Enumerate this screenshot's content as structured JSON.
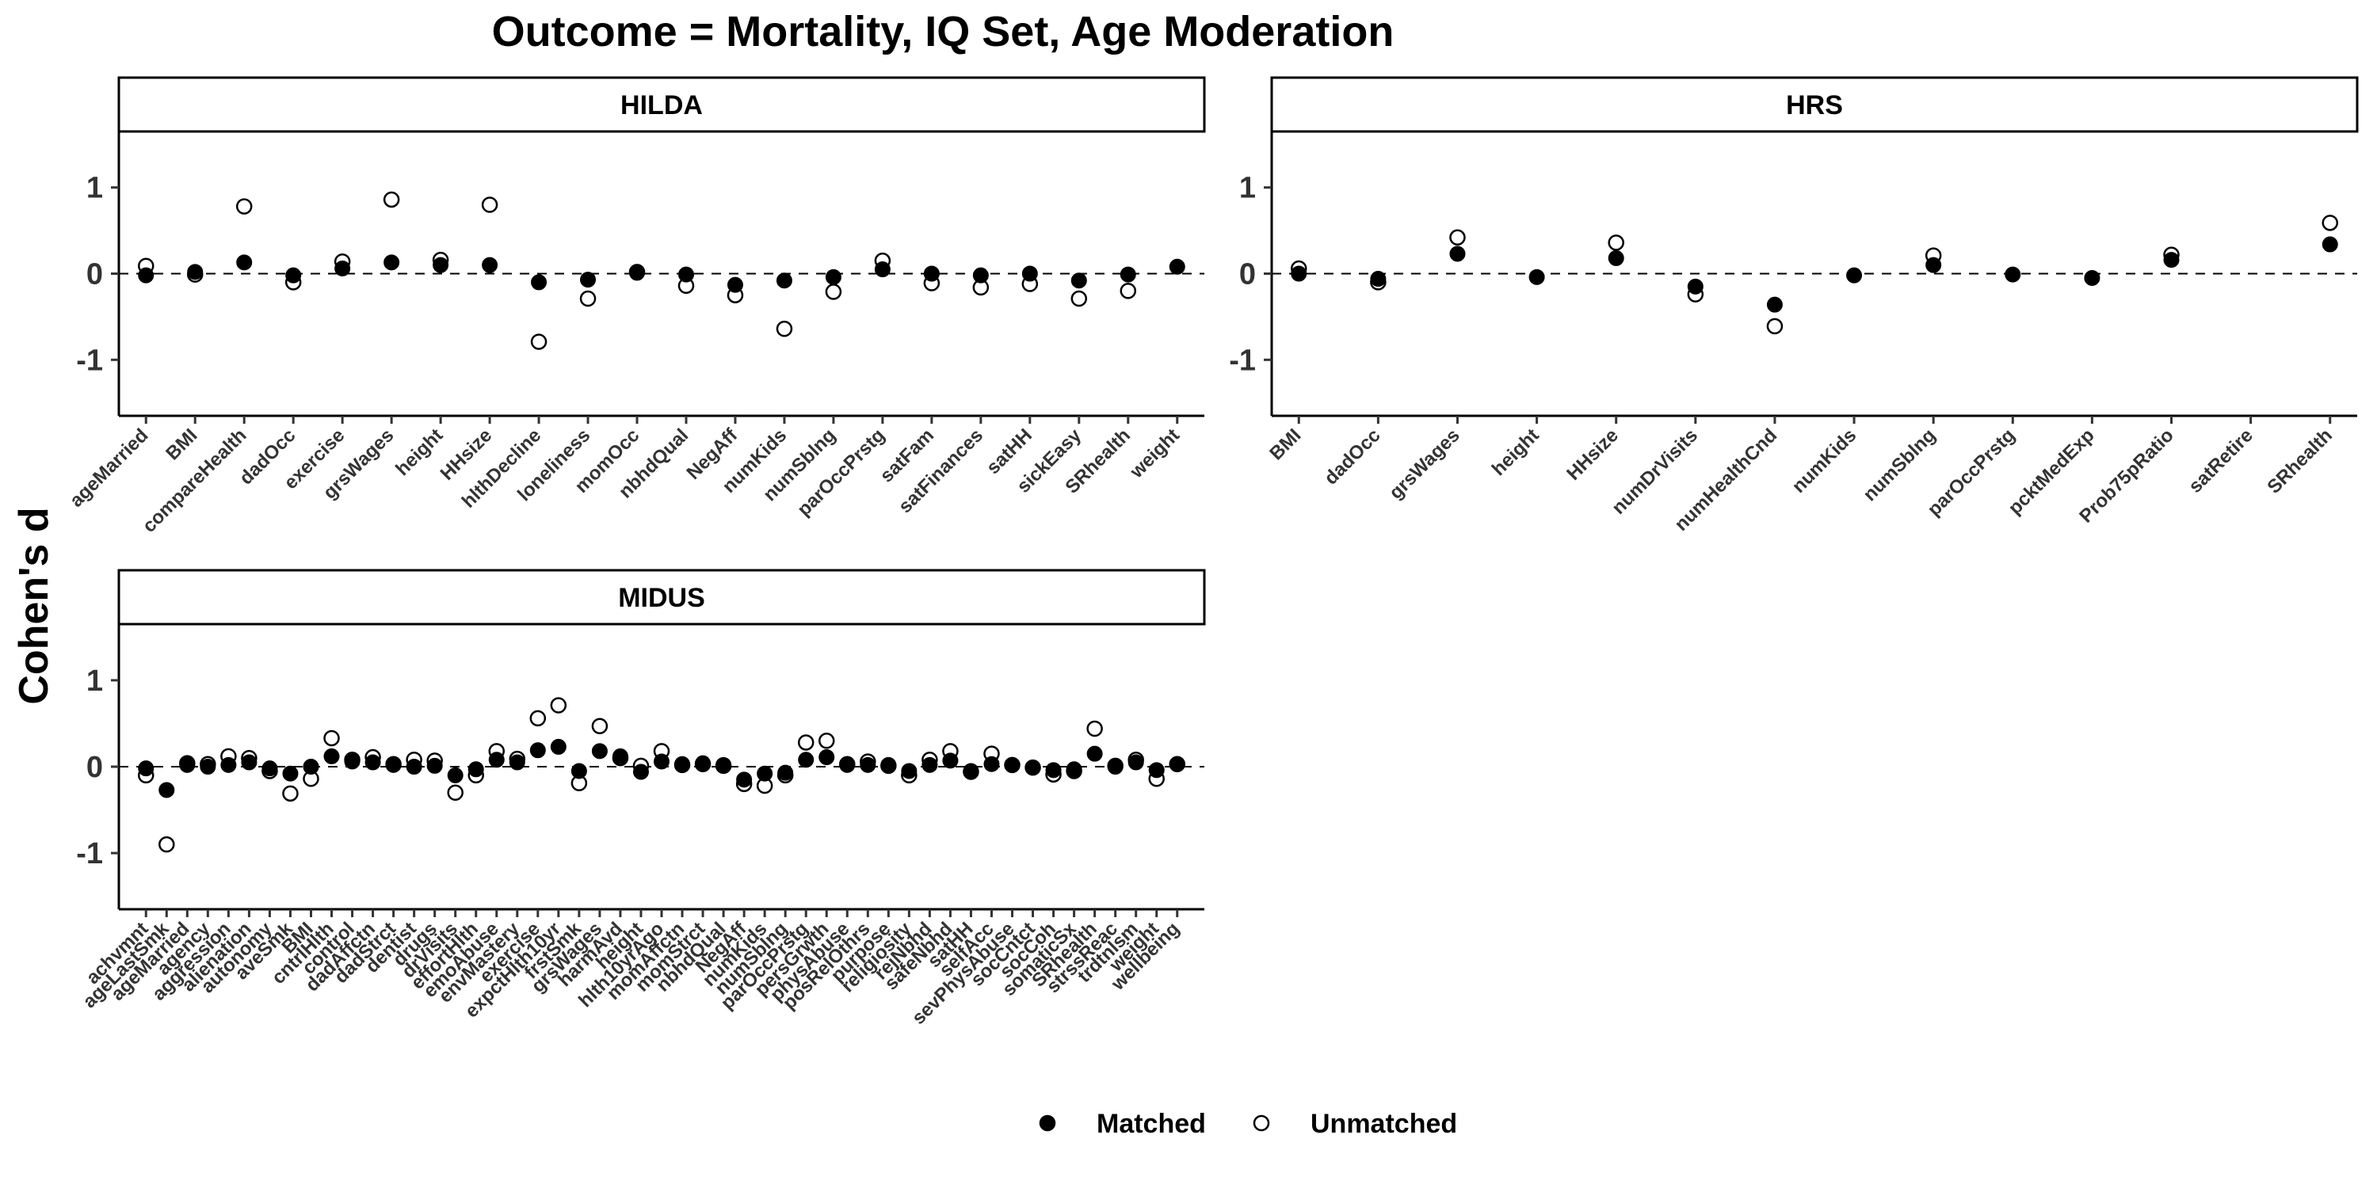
{
  "chart_data": {
    "type": "scatter",
    "title": "Outcome = Mortality, IQ Set, Age Moderation",
    "ylabel": "Cohen's d",
    "ylim": [
      -1.65,
      1.65
    ],
    "yticks": [
      -1,
      0,
      1
    ],
    "reference_line": {
      "y": 0,
      "style": "dashed"
    },
    "legend": {
      "placement": "bottom",
      "entries": [
        {
          "label": "Matched",
          "marker": "filled-circle"
        },
        {
          "label": "Unmatched",
          "marker": "open-circle"
        }
      ]
    },
    "colors": {
      "matched": "#000000",
      "unmatched": "#ffffff",
      "marker_edge": "#000000"
    },
    "panels": [
      {
        "name": "HILDA",
        "categories": [
          "ageMarried",
          "BMI",
          "compareHealth",
          "dadOcc",
          "exercise",
          "grsWages",
          "height",
          "HHsize",
          "hlthDecline",
          "loneliness",
          "momOcc",
          "nbhdQual",
          "NegAff",
          "numKids",
          "numSblng",
          "parOccPrstg",
          "satFam",
          "satFinances",
          "satHH",
          "sickEasy",
          "SRhealth",
          "weight"
        ],
        "series": [
          {
            "name": "Matched",
            "values": [
              -0.02,
              0.02,
              0.13,
              -0.02,
              0.06,
              0.13,
              0.1,
              0.1,
              -0.1,
              -0.07,
              0.01,
              -0.01,
              -0.13,
              -0.08,
              -0.04,
              0.05,
              0.0,
              -0.02,
              0.0,
              -0.08,
              -0.01,
              0.08
            ]
          },
          {
            "name": "Unmatched",
            "values": [
              0.09,
              -0.01,
              0.78,
              -0.1,
              0.14,
              0.86,
              0.16,
              0.8,
              -0.79,
              -0.29,
              0.02,
              -0.14,
              -0.25,
              -0.64,
              -0.21,
              0.15,
              -0.11,
              -0.16,
              -0.12,
              -0.29,
              -0.2,
              null
            ]
          }
        ]
      },
      {
        "name": "HRS",
        "categories": [
          "BMI",
          "dadOcc",
          "grsWages",
          "height",
          "HHsize",
          "numDrVisits",
          "numHealthCnd",
          "numKids",
          "numSblng",
          "parOccPrstg",
          "pcktMedExp",
          "Prob75pRatio",
          "satRetire",
          "SRhealth"
        ],
        "series": [
          {
            "name": "Matched",
            "values": [
              0.0,
              -0.06,
              0.23,
              -0.04,
              0.18,
              -0.15,
              -0.36,
              -0.02,
              0.1,
              -0.01,
              -0.05,
              0.16,
              null,
              0.34
            ]
          },
          {
            "name": "Unmatched",
            "values": [
              0.06,
              -0.1,
              0.42,
              null,
              0.36,
              -0.24,
              -0.61,
              null,
              0.21,
              null,
              null,
              0.22,
              null,
              0.59
            ]
          }
        ]
      },
      {
        "name": "MIDUS",
        "categories": [
          "achvmnt",
          "ageLastSmk",
          "ageMarried",
          "agency",
          "aggression",
          "alienation",
          "autonomy",
          "aveSmk",
          "BMI",
          "cntrlHlth",
          "control",
          "dadAffctn",
          "dadStrct",
          "dentist",
          "drugs",
          "drVisits",
          "effortHlth",
          "emoAbuse",
          "envMastery",
          "exercise",
          "expctHlth10yr",
          "frstSmk",
          "grsWages",
          "harmAvd",
          "height",
          "hlth10yrAgo",
          "momAffctn",
          "momStrct",
          "nbhdQual",
          "NegAff",
          "numKids",
          "numSblng",
          "parOccPrstg",
          "persGrwth",
          "physAbuse",
          "posRelOthrs",
          "purpose",
          "religiosity",
          "rejNbhd",
          "safeNbhd",
          "satHH",
          "selfAcc",
          "sevPhysAbuse",
          "socCntct",
          "socCoh",
          "somaticSx",
          "SRhealth",
          "strssReac",
          "trdtnlsm",
          "weight",
          "wellbeing"
        ],
        "series": [
          {
            "name": "Matched",
            "values": [
              -0.02,
              -0.27,
              0.02,
              0.0,
              0.02,
              0.05,
              -0.02,
              -0.08,
              0.0,
              0.12,
              0.06,
              0.05,
              0.02,
              0.0,
              0.01,
              -0.1,
              -0.03,
              0.08,
              0.05,
              0.19,
              0.23,
              -0.05,
              0.18,
              0.12,
              -0.06,
              0.06,
              0.03,
              0.04,
              0.02,
              -0.15,
              -0.08,
              -0.07,
              0.08,
              0.11,
              0.02,
              0.02,
              0.02,
              -0.05,
              0.02,
              0.07,
              -0.05,
              0.03,
              0.02,
              -0.01,
              -0.04,
              -0.03,
              0.15,
              0.0,
              0.05,
              -0.04,
              0.03
            ]
          },
          {
            "name": "Unmatched",
            "values": [
              -0.1,
              -0.9,
              0.04,
              0.03,
              0.12,
              0.1,
              -0.05,
              -0.31,
              -0.14,
              0.33,
              0.08,
              0.11,
              0.03,
              0.08,
              0.07,
              -0.3,
              -0.1,
              0.18,
              0.09,
              0.56,
              0.71,
              -0.19,
              0.47,
              0.1,
              0.01,
              0.18,
              0.02,
              0.03,
              0.01,
              -0.2,
              -0.22,
              -0.1,
              0.28,
              0.3,
              0.03,
              0.06,
              0.01,
              -0.1,
              0.08,
              0.18,
              -0.06,
              0.15,
              0.02,
              -0.01,
              -0.09,
              -0.05,
              0.44,
              0.01,
              0.08,
              -0.14,
              0.03
            ]
          }
        ]
      }
    ]
  }
}
